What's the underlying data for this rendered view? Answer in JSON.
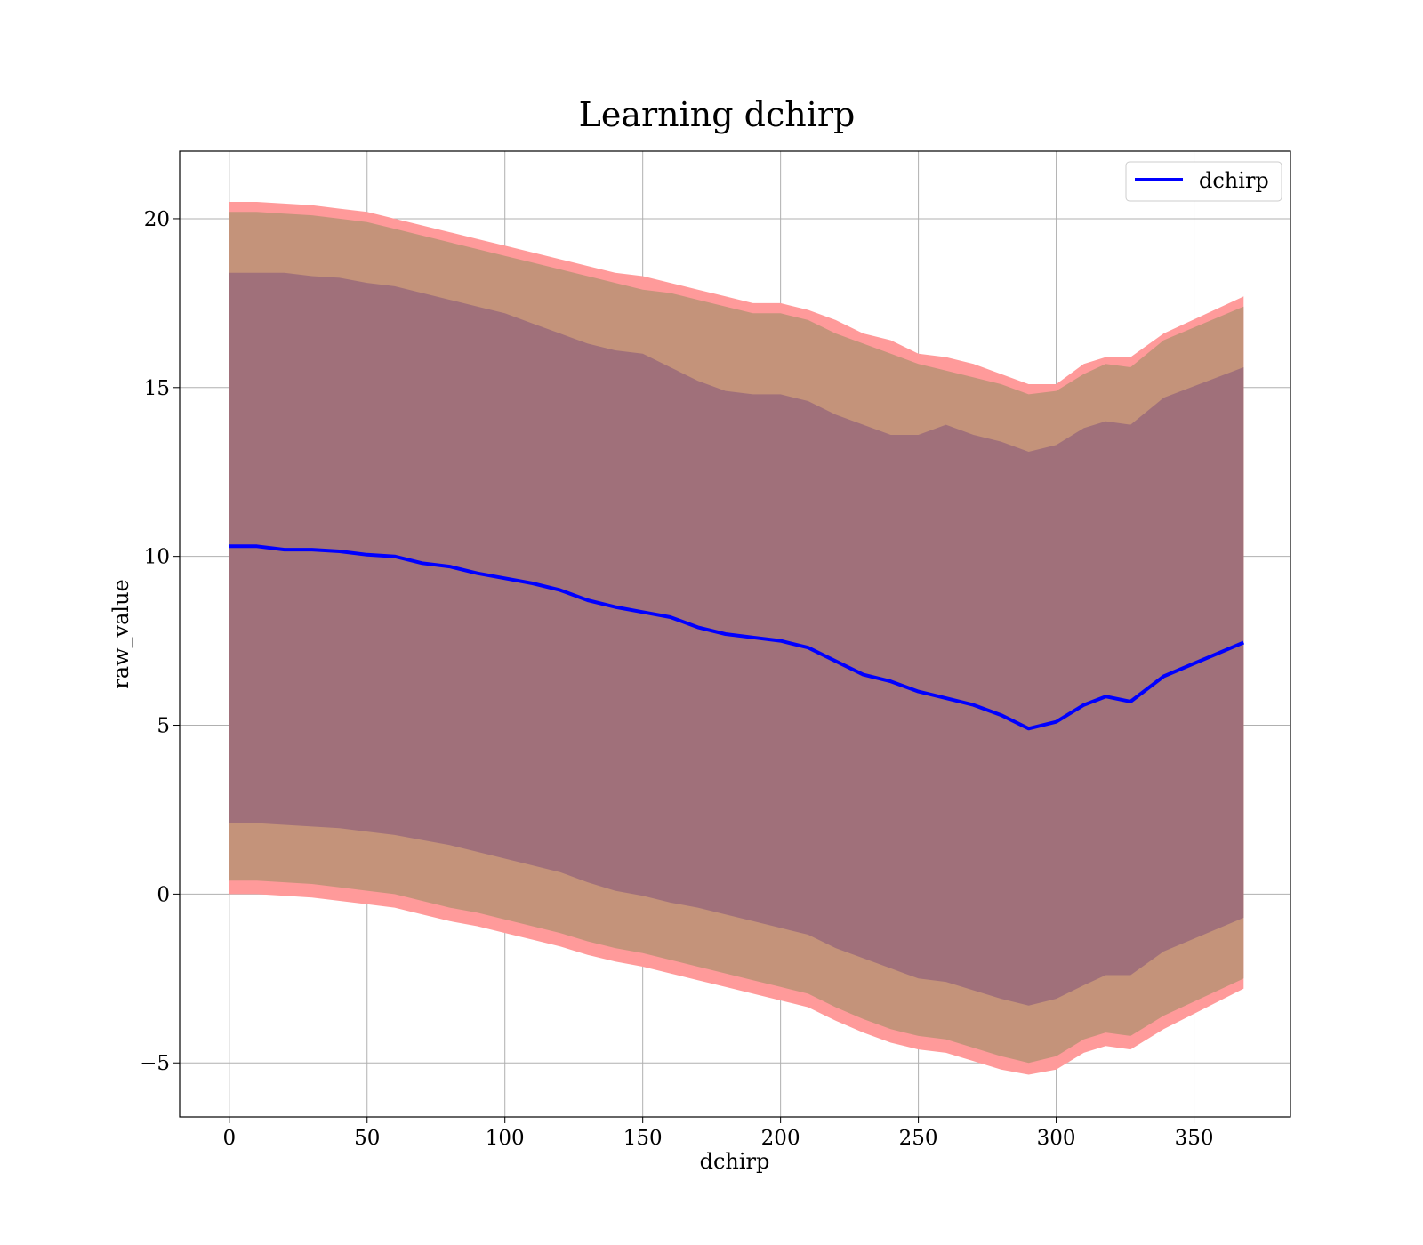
{
  "chart_data": {
    "type": "area",
    "title": "Learning dchirp",
    "xlabel": "dchirp",
    "ylabel": "raw_value",
    "xlim": [
      -18,
      385
    ],
    "ylim": [
      -6.6,
      22
    ],
    "xticks": [
      0,
      50,
      100,
      150,
      200,
      250,
      300,
      350
    ],
    "yticks": [
      -5,
      0,
      5,
      10,
      15,
      20
    ],
    "xtick_labels": [
      "0",
      "50",
      "100",
      "150",
      "200",
      "250",
      "300",
      "350"
    ],
    "ytick_labels": [
      "−5",
      "0",
      "5",
      "10",
      "15",
      "20"
    ],
    "grid": true,
    "legend": {
      "position": "top-right",
      "entries": [
        "dchirp"
      ]
    },
    "colors": {
      "line": "#0000ff",
      "outer_band": "#ff9a9a",
      "middle_band": "#c4937a",
      "inner_band": "#a0707a"
    },
    "x": [
      0,
      10,
      20,
      30,
      40,
      50,
      60,
      70,
      80,
      90,
      100,
      110,
      120,
      130,
      140,
      150,
      160,
      170,
      180,
      190,
      200,
      210,
      220,
      230,
      240,
      250,
      260,
      270,
      280,
      290,
      300,
      310,
      318,
      327,
      339,
      368
    ],
    "series": [
      {
        "name": "dchirp",
        "role": "line",
        "values": [
          10.3,
          10.3,
          10.2,
          10.2,
          10.15,
          10.05,
          10.0,
          9.8,
          9.7,
          9.5,
          9.35,
          9.2,
          9.0,
          8.7,
          8.5,
          8.35,
          8.2,
          7.9,
          7.7,
          7.6,
          7.5,
          7.3,
          6.9,
          6.5,
          6.3,
          6.0,
          5.8,
          5.6,
          5.3,
          4.9,
          5.1,
          5.6,
          5.85,
          5.7,
          6.45,
          7.45
        ]
      },
      {
        "role": "outer-band-upper",
        "values": [
          20.5,
          20.5,
          20.45,
          20.4,
          20.3,
          20.2,
          20.0,
          19.8,
          19.6,
          19.4,
          19.2,
          19.0,
          18.8,
          18.6,
          18.4,
          18.3,
          18.1,
          17.9,
          17.7,
          17.5,
          17.5,
          17.3,
          17.0,
          16.6,
          16.4,
          16.0,
          15.9,
          15.7,
          15.4,
          15.1,
          15.1,
          15.7,
          15.9,
          15.9,
          16.6,
          17.7
        ]
      },
      {
        "role": "middle-band-upper",
        "values": [
          20.2,
          20.2,
          20.15,
          20.1,
          20.0,
          19.9,
          19.7,
          19.5,
          19.3,
          19.1,
          18.9,
          18.7,
          18.5,
          18.3,
          18.1,
          17.9,
          17.8,
          17.6,
          17.4,
          17.2,
          17.2,
          17.0,
          16.6,
          16.3,
          16.0,
          15.7,
          15.5,
          15.3,
          15.1,
          14.8,
          14.9,
          15.4,
          15.7,
          15.6,
          16.4,
          17.4
        ]
      },
      {
        "role": "inner-band-upper",
        "values": [
          18.4,
          18.4,
          18.4,
          18.3,
          18.25,
          18.1,
          18.0,
          17.8,
          17.6,
          17.4,
          17.2,
          16.9,
          16.6,
          16.3,
          16.1,
          16.0,
          15.6,
          15.2,
          14.9,
          14.8,
          14.8,
          14.6,
          14.2,
          13.9,
          13.6,
          13.6,
          13.9,
          13.6,
          13.4,
          13.1,
          13.3,
          13.8,
          14.0,
          13.9,
          14.7,
          15.6
        ]
      },
      {
        "role": "inner-band-lower",
        "values": [
          2.1,
          2.1,
          2.05,
          2.0,
          1.95,
          1.85,
          1.75,
          1.6,
          1.45,
          1.25,
          1.05,
          0.85,
          0.65,
          0.35,
          0.1,
          -0.05,
          -0.25,
          -0.4,
          -0.6,
          -0.8,
          -1.0,
          -1.2,
          -1.6,
          -1.9,
          -2.2,
          -2.5,
          -2.6,
          -2.85,
          -3.1,
          -3.3,
          -3.1,
          -2.7,
          -2.4,
          -2.4,
          -1.7,
          -0.7
        ]
      },
      {
        "role": "middle-band-lower",
        "values": [
          0.4,
          0.4,
          0.35,
          0.3,
          0.2,
          0.1,
          0.0,
          -0.2,
          -0.4,
          -0.55,
          -0.75,
          -0.95,
          -1.15,
          -1.4,
          -1.6,
          -1.75,
          -1.95,
          -2.15,
          -2.35,
          -2.55,
          -2.75,
          -2.95,
          -3.35,
          -3.7,
          -4.0,
          -4.2,
          -4.3,
          -4.55,
          -4.8,
          -5.0,
          -4.8,
          -4.3,
          -4.1,
          -4.2,
          -3.6,
          -2.5
        ]
      },
      {
        "role": "outer-band-lower",
        "values": [
          0.0,
          0.0,
          -0.05,
          -0.1,
          -0.2,
          -0.3,
          -0.4,
          -0.6,
          -0.8,
          -0.95,
          -1.15,
          -1.35,
          -1.55,
          -1.8,
          -2.0,
          -2.15,
          -2.35,
          -2.55,
          -2.75,
          -2.95,
          -3.15,
          -3.35,
          -3.75,
          -4.1,
          -4.4,
          -4.6,
          -4.7,
          -4.95,
          -5.2,
          -5.35,
          -5.2,
          -4.7,
          -4.5,
          -4.6,
          -4.0,
          -2.8
        ]
      }
    ]
  }
}
